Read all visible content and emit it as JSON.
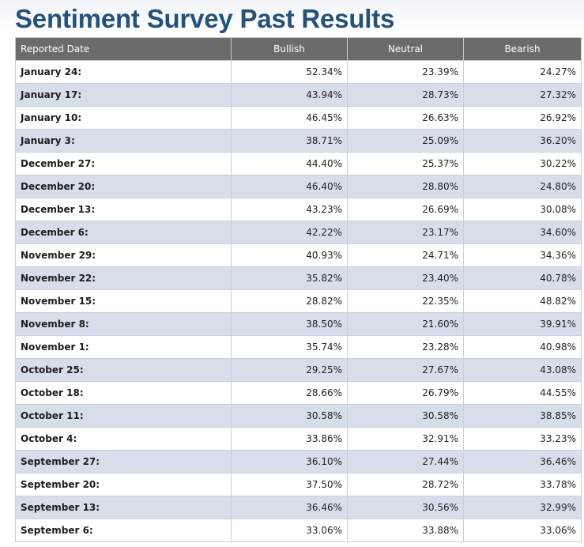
{
  "title": "Sentiment Survey Past Results",
  "headers": [
    "Reported Date",
    "Bullish",
    "Neutral",
    "Bearish"
  ],
  "rows": [
    {
      "date": "January 24:",
      "bullish": "52.34%",
      "neutral": "23.39%",
      "bearish": "24.27%"
    },
    {
      "date": "January 17:",
      "bullish": "43.94%",
      "neutral": "28.73%",
      "bearish": "27.32%"
    },
    {
      "date": "January 10:",
      "bullish": "46.45%",
      "neutral": "26.63%",
      "bearish": "26.92%"
    },
    {
      "date": "January 3:",
      "bullish": "38.71%",
      "neutral": "25.09%",
      "bearish": "36.20%"
    },
    {
      "date": "December 27:",
      "bullish": "44.40%",
      "neutral": "25.37%",
      "bearish": "30.22%"
    },
    {
      "date": "December 20:",
      "bullish": "46.40%",
      "neutral": "28.80%",
      "bearish": "24.80%"
    },
    {
      "date": "December 13:",
      "bullish": "43.23%",
      "neutral": "26.69%",
      "bearish": "30.08%"
    },
    {
      "date": "December 6:",
      "bullish": "42.22%",
      "neutral": "23.17%",
      "bearish": "34.60%"
    },
    {
      "date": "November 29:",
      "bullish": "40.93%",
      "neutral": "24.71%",
      "bearish": "34.36%"
    },
    {
      "date": "November 22:",
      "bullish": "35.82%",
      "neutral": "23.40%",
      "bearish": "40.78%"
    },
    {
      "date": "November 15:",
      "bullish": "28.82%",
      "neutral": "22.35%",
      "bearish": "48.82%"
    },
    {
      "date": "November 8:",
      "bullish": "38.50%",
      "neutral": "21.60%",
      "bearish": "39.91%"
    },
    {
      "date": "November 1:",
      "bullish": "35.74%",
      "neutral": "23.28%",
      "bearish": "40.98%"
    },
    {
      "date": "October 25:",
      "bullish": "29.25%",
      "neutral": "27.67%",
      "bearish": "43.08%"
    },
    {
      "date": "October 18:",
      "bullish": "28.66%",
      "neutral": "26.79%",
      "bearish": "44.55%"
    },
    {
      "date": "October 11:",
      "bullish": "30.58%",
      "neutral": "30.58%",
      "bearish": "38.85%"
    },
    {
      "date": "October 4:",
      "bullish": "33.86%",
      "neutral": "32.91%",
      "bearish": "33.23%"
    },
    {
      "date": "September 27:",
      "bullish": "36.10%",
      "neutral": "27.44%",
      "bearish": "36.46%"
    },
    {
      "date": "September 20:",
      "bullish": "37.50%",
      "neutral": "28.72%",
      "bearish": "33.78%"
    },
    {
      "date": "September 13:",
      "bullish": "36.46%",
      "neutral": "30.56%",
      "bearish": "32.99%"
    },
    {
      "date": "September 6:",
      "bullish": "33.06%",
      "neutral": "33.88%",
      "bearish": "33.06%"
    }
  ]
}
